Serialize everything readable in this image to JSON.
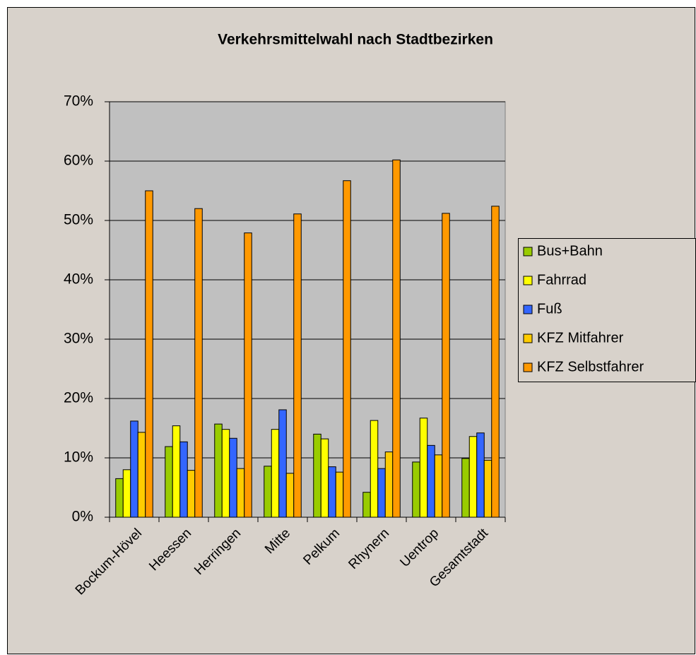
{
  "chart_data": {
    "type": "bar",
    "title": "Verkehrsmittelwahl nach Stadtbezirken",
    "categories": [
      "Bockum-Hövel",
      "Heessen",
      "Herringen",
      "Mitte",
      "Pelkum",
      "Rhynern",
      "Uentrop",
      "Gesamtstadt"
    ],
    "series": [
      {
        "name": "Bus+Bahn",
        "color": "#99cc00",
        "values": [
          6.5,
          11.9,
          15.7,
          8.6,
          14.0,
          4.2,
          9.3,
          9.9
        ]
      },
      {
        "name": "Fahrrad",
        "color": "#ffff00",
        "values": [
          8.0,
          15.4,
          14.8,
          14.8,
          13.2,
          16.3,
          16.7,
          13.6
        ]
      },
      {
        "name": "Fuß",
        "color": "#3366ff",
        "values": [
          16.2,
          12.7,
          13.3,
          18.1,
          8.5,
          8.2,
          12.1,
          14.2
        ]
      },
      {
        "name": "KFZ Mitfahrer",
        "color": "#ffcc00",
        "values": [
          14.3,
          7.9,
          8.2,
          7.4,
          7.6,
          11.0,
          10.5,
          9.6
        ]
      },
      {
        "name": "KFZ Selbstfahrer",
        "color": "#ff9900",
        "values": [
          55.0,
          52.0,
          47.9,
          51.1,
          56.7,
          60.2,
          51.2,
          52.4
        ]
      }
    ],
    "ylim": [
      0,
      70
    ],
    "yticks": [
      {
        "value": 0,
        "label": "0%"
      },
      {
        "value": 10,
        "label": "10%"
      },
      {
        "value": 20,
        "label": "20%"
      },
      {
        "value": 30,
        "label": "30%"
      },
      {
        "value": 40,
        "label": "40%"
      },
      {
        "value": 50,
        "label": "50%"
      },
      {
        "value": 60,
        "label": "60%"
      },
      {
        "value": 70,
        "label": "70%"
      }
    ],
    "grid": true,
    "legend": "right"
  }
}
